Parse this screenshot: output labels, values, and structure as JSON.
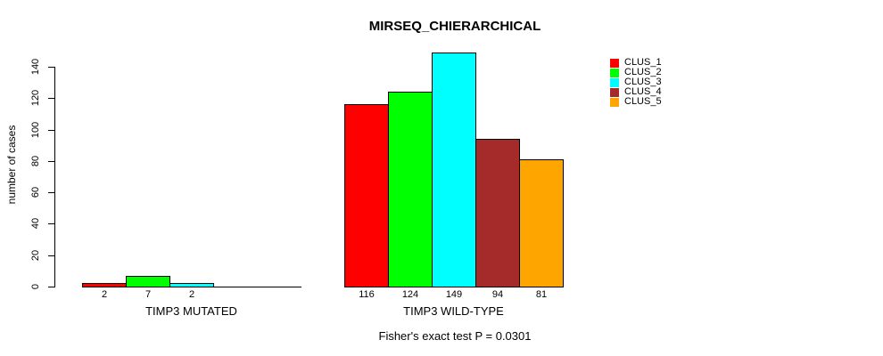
{
  "chart_data": {
    "type": "bar",
    "title": "MIRSEQ_CHIERARCHICAL",
    "ylabel": "number of cases",
    "caption": "Fisher's exact test P = 0.0301",
    "ylim": [
      0,
      140
    ],
    "yticks": [
      0,
      20,
      40,
      60,
      80,
      100,
      120,
      140
    ],
    "grid": false,
    "legend_position": "top-right",
    "series": [
      {
        "name": "CLUS_1",
        "color": "#FF0000"
      },
      {
        "name": "CLUS_2",
        "color": "#00FF00"
      },
      {
        "name": "CLUS_3",
        "color": "#00FFFF"
      },
      {
        "name": "CLUS_4",
        "color": "#A52A2A"
      },
      {
        "name": "CLUS_5",
        "color": "#FFA500"
      }
    ],
    "groups": [
      {
        "label": "TIMP3 MUTATED",
        "values": [
          2,
          7,
          2,
          0,
          0
        ],
        "bar_labels": [
          "2",
          "7",
          "2",
          "",
          ""
        ]
      },
      {
        "label": "TIMP3 WILD-TYPE",
        "values": [
          116,
          124,
          149,
          94,
          81
        ],
        "bar_labels": [
          "116",
          "124",
          "149",
          "94",
          "81"
        ]
      }
    ]
  }
}
